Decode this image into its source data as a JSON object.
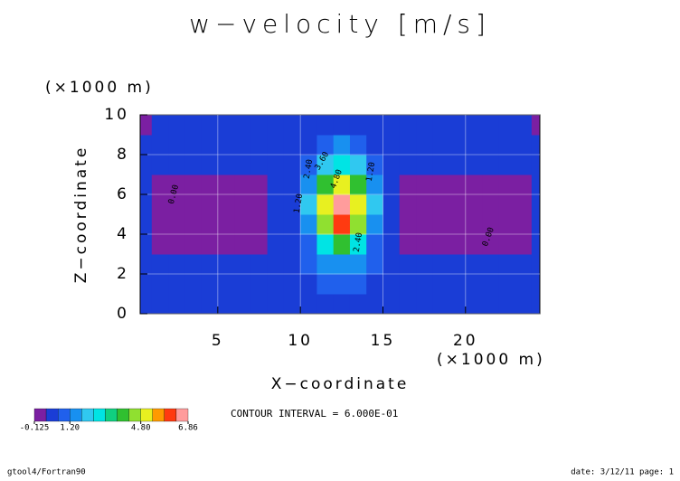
{
  "chart_data": {
    "type": "contour",
    "title": "w−velocity [m/s]",
    "x_label": "X−coordinate",
    "y_label": "Z−coordinate",
    "x_unit": "(×1000 m)",
    "y_unit": "(×1000 m)",
    "xlim": [
      0.3,
      24.5
    ],
    "ylim": [
      0,
      10
    ],
    "xticks": [
      5,
      10,
      15,
      20
    ],
    "yticks": [
      0,
      2,
      4,
      6,
      8,
      10
    ],
    "x": [
      0.5,
      1.5,
      2.5,
      3.5,
      4.5,
      5.5,
      6.5,
      7.5,
      8.5,
      9.5,
      10.5,
      11.5,
      12.5,
      13.5,
      14.5,
      15.5,
      16.5,
      17.5,
      18.5,
      19.5,
      20.5,
      21.5,
      22.5,
      23.5,
      24.5
    ],
    "z": [
      0.5,
      1.5,
      2.5,
      3.5,
      4.5,
      5.5,
      6.5,
      7.5,
      8.5,
      9.5
    ],
    "values": [
      [
        0.3,
        0.3,
        0.3,
        0.3,
        0.3,
        0.3,
        0.3,
        0.3,
        0.3,
        0.3,
        0.32,
        0.36,
        0.38,
        0.36,
        0.32,
        0.3,
        0.3,
        0.3,
        0.3,
        0.3,
        0.3,
        0.3,
        0.3,
        0.3,
        0.3
      ],
      [
        0.3,
        0.3,
        0.3,
        0.3,
        0.3,
        0.3,
        0.3,
        0.3,
        0.3,
        0.32,
        0.41,
        0.6,
        0.72,
        0.6,
        0.41,
        0.32,
        0.3,
        0.3,
        0.3,
        0.3,
        0.3,
        0.3,
        0.3,
        0.3,
        0.3
      ],
      [
        0.3,
        0.3,
        0.3,
        0.3,
        0.3,
        0.3,
        0.3,
        0.3,
        0.3,
        0.36,
        0.67,
        1.34,
        1.78,
        1.34,
        0.67,
        0.36,
        0.3,
        0.3,
        0.3,
        0.3,
        0.3,
        0.3,
        0.3,
        0.3,
        0.3
      ],
      [
        0.3,
        -0.05,
        -0.05,
        -0.05,
        -0.05,
        -0.05,
        -0.05,
        -0.05,
        0.3,
        0.45,
        1.18,
        2.79,
        3.82,
        2.79,
        1.18,
        0.45,
        -0.05,
        -0.05,
        -0.05,
        -0.05,
        -0.05,
        -0.05,
        -0.05,
        -0.05,
        0.3
      ],
      [
        0.3,
        -0.05,
        -0.05,
        -0.05,
        -0.05,
        -0.05,
        -0.05,
        -0.05,
        0.3,
        0.55,
        1.74,
        4.38,
        6.06,
        4.38,
        1.74,
        0.55,
        -0.05,
        -0.05,
        -0.05,
        -0.05,
        -0.05,
        -0.05,
        -0.05,
        -0.05,
        0.3
      ],
      [
        0.3,
        -0.05,
        -0.05,
        -0.05,
        -0.05,
        -0.05,
        -0.05,
        -0.05,
        0.3,
        0.58,
        1.92,
        4.86,
        6.75,
        4.86,
        1.92,
        0.58,
        -0.05,
        -0.05,
        -0.05,
        -0.05,
        -0.05,
        -0.05,
        -0.05,
        -0.05,
        0.3
      ],
      [
        0.3,
        -0.05,
        -0.05,
        -0.05,
        -0.05,
        -0.05,
        -0.05,
        -0.05,
        0.3,
        0.52,
        1.54,
        3.8,
        5.25,
        3.8,
        1.54,
        0.52,
        -0.05,
        -0.05,
        -0.05,
        -0.05,
        -0.05,
        -0.05,
        -0.05,
        -0.05,
        0.3
      ],
      [
        0.3,
        0.3,
        0.3,
        0.3,
        0.3,
        0.3,
        0.3,
        0.3,
        0.3,
        0.41,
        0.95,
        2.14,
        2.9,
        2.14,
        0.95,
        0.41,
        0.3,
        0.3,
        0.3,
        0.3,
        0.3,
        0.3,
        0.3,
        0.3,
        0.3
      ],
      [
        0.3,
        0.3,
        0.3,
        0.3,
        0.3,
        0.3,
        0.3,
        0.3,
        0.3,
        0.34,
        0.53,
        0.96,
        1.24,
        0.96,
        0.53,
        0.34,
        0.3,
        0.3,
        0.3,
        0.3,
        0.3,
        0.3,
        0.3,
        0.3,
        0.3
      ],
      [
        -0.05,
        0.3,
        0.3,
        0.3,
        0.3,
        0.3,
        0.3,
        0.3,
        0.3,
        0.31,
        0.36,
        0.47,
        0.53,
        0.47,
        0.36,
        0.31,
        0.3,
        0.3,
        0.3,
        0.3,
        0.3,
        0.3,
        0.3,
        0.3,
        -0.05
      ]
    ],
    "levels": [
      -0.125,
      0,
      0.6,
      1.2,
      1.8,
      2.4,
      3.0,
      3.6,
      4.2,
      4.8,
      5.4,
      6.0,
      6.6,
      6.86
    ],
    "colors": [
      "#7b1fa2",
      "#1a3dd6",
      "#2060ec",
      "#1890f0",
      "#30c8f0",
      "#00e4e4",
      "#10d080",
      "#30c030",
      "#90e030",
      "#e8f020",
      "#ff9a00",
      "#ff3a10",
      "#ff9c9c"
    ],
    "colorbar_ticks": [
      {
        "value": -0.125,
        "label": "-0.125"
      },
      {
        "value": 1.2,
        "label": "1.20"
      },
      {
        "value": 4.8,
        "label": "4.80"
      },
      {
        "value": 6.86,
        "label": "6.86"
      }
    ],
    "contour_labels": [
      "0.00",
      "1.20",
      "2.40",
      "3.60",
      "4.80",
      "2.40",
      "1.20",
      "0.00"
    ],
    "annotation": "CONTOUR INTERVAL = 6.000E-01",
    "footer_left": "gtool4/Fortran90",
    "footer_right": "date: 3/12/11 page: 1"
  }
}
